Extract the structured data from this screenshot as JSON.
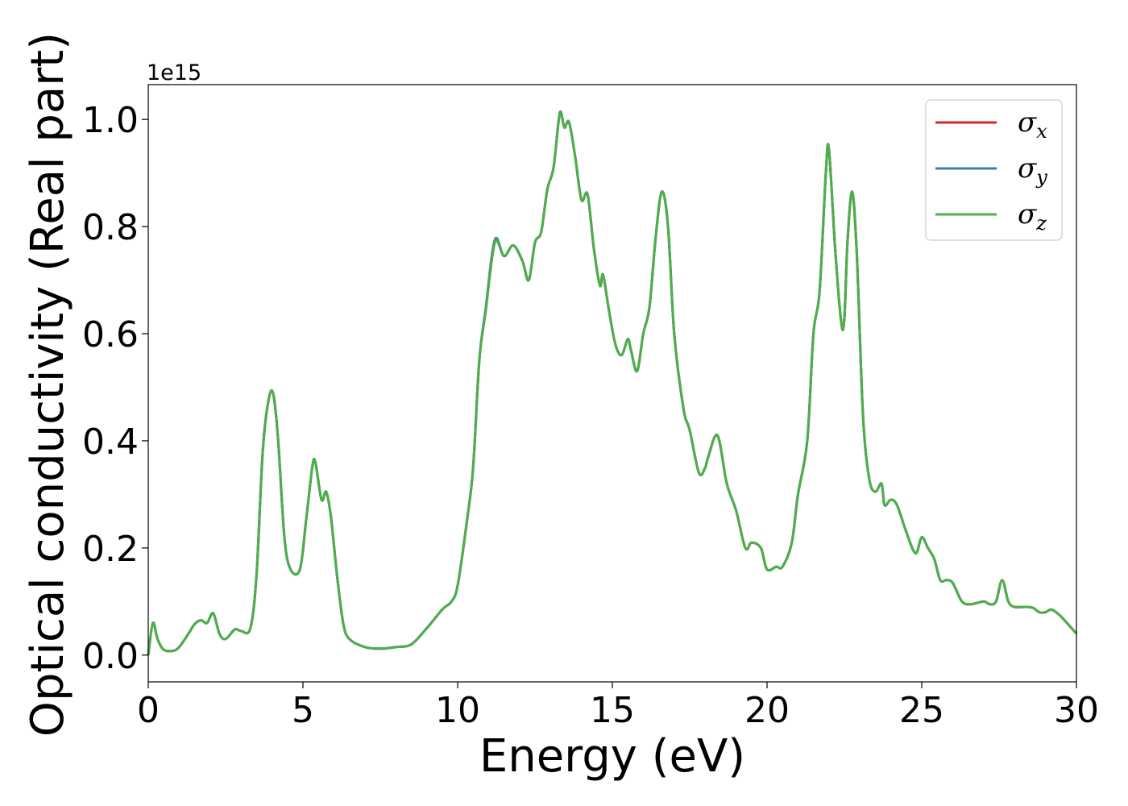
{
  "chart_data": {
    "type": "line",
    "xlabel": "Energy (eV)",
    "ylabel": "Optical conductivity (Real part)",
    "y_offset_label": "1e15",
    "xlim": [
      0,
      30
    ],
    "ylim": [
      -0.05,
      1.065
    ],
    "xticks": [
      0,
      5,
      10,
      15,
      20,
      25,
      30
    ],
    "xtick_labels": [
      "0",
      "5",
      "10",
      "15",
      "20",
      "25",
      "30"
    ],
    "yticks": [
      0.0,
      0.2,
      0.4,
      0.6,
      0.8,
      1.0
    ],
    "ytick_labels": [
      "0.0",
      "0.2",
      "0.4",
      "0.6",
      "0.8",
      "1.0"
    ],
    "grid": false,
    "legend_position": "top-right",
    "x": [
      0,
      0.15,
      0.3,
      0.5,
      0.8,
      1.0,
      1.3,
      1.5,
      1.7,
      1.9,
      2.1,
      2.3,
      2.5,
      2.8,
      3.0,
      3.3,
      3.5,
      3.7,
      3.9,
      4.05,
      4.2,
      4.4,
      4.6,
      4.9,
      5.1,
      5.3,
      5.4,
      5.6,
      5.75,
      5.9,
      6.1,
      6.3,
      6.5,
      7.0,
      7.5,
      8.0,
      8.5,
      9.0,
      9.5,
      9.8,
      10.0,
      10.3,
      10.5,
      10.7,
      10.9,
      11.2,
      11.5,
      11.8,
      12.1,
      12.3,
      12.5,
      12.7,
      12.9,
      13.1,
      13.3,
      13.45,
      13.6,
      13.8,
      14.0,
      14.2,
      14.4,
      14.6,
      14.7,
      14.9,
      15.1,
      15.3,
      15.5,
      15.6,
      15.8,
      16.0,
      16.2,
      16.4,
      16.6,
      16.8,
      17.0,
      17.3,
      17.5,
      17.8,
      18.0,
      18.1,
      18.4,
      18.7,
      19.0,
      19.3,
      19.5,
      19.8,
      20.0,
      20.3,
      20.5,
      20.8,
      21.0,
      21.3,
      21.5,
      21.7,
      21.9,
      22.0,
      22.2,
      22.4,
      22.5,
      22.6,
      22.75,
      22.9,
      23.1,
      23.3,
      23.5,
      23.7,
      23.8,
      24.0,
      24.2,
      24.5,
      24.8,
      25.0,
      25.2,
      25.4,
      25.6,
      25.8,
      26.0,
      26.3,
      26.6,
      27.0,
      27.2,
      27.4,
      27.6,
      27.8,
      28.0,
      28.4,
      28.6,
      28.8,
      29.0,
      29.2,
      29.5,
      30.0
    ],
    "series": [
      {
        "name": "σx",
        "color": "#d62728",
        "values": [
          0.0,
          0.06,
          0.03,
          0.01,
          0.008,
          0.015,
          0.04,
          0.058,
          0.065,
          0.06,
          0.078,
          0.04,
          0.03,
          0.048,
          0.045,
          0.05,
          0.15,
          0.38,
          0.48,
          0.485,
          0.4,
          0.22,
          0.16,
          0.16,
          0.25,
          0.35,
          0.36,
          0.29,
          0.305,
          0.26,
          0.15,
          0.06,
          0.03,
          0.015,
          0.012,
          0.015,
          0.02,
          0.05,
          0.085,
          0.1,
          0.13,
          0.25,
          0.35,
          0.55,
          0.64,
          0.77,
          0.745,
          0.765,
          0.735,
          0.7,
          0.77,
          0.79,
          0.87,
          0.91,
          1.01,
          0.985,
          0.995,
          0.93,
          0.85,
          0.86,
          0.76,
          0.69,
          0.71,
          0.64,
          0.58,
          0.56,
          0.59,
          0.57,
          0.53,
          0.6,
          0.65,
          0.78,
          0.865,
          0.8,
          0.6,
          0.46,
          0.42,
          0.34,
          0.35,
          0.37,
          0.41,
          0.32,
          0.27,
          0.2,
          0.21,
          0.2,
          0.16,
          0.165,
          0.165,
          0.21,
          0.3,
          0.4,
          0.6,
          0.68,
          0.9,
          0.945,
          0.76,
          0.62,
          0.63,
          0.77,
          0.865,
          0.75,
          0.45,
          0.33,
          0.305,
          0.32,
          0.28,
          0.29,
          0.28,
          0.23,
          0.19,
          0.22,
          0.2,
          0.18,
          0.14,
          0.14,
          0.135,
          0.1,
          0.095,
          0.1,
          0.095,
          0.1,
          0.14,
          0.1,
          0.09,
          0.09,
          0.088,
          0.08,
          0.08,
          0.085,
          0.072,
          0.04
        ]
      },
      {
        "name": "σy",
        "color": "#3a7db5",
        "values": [
          0.0,
          0.06,
          0.03,
          0.01,
          0.008,
          0.015,
          0.04,
          0.058,
          0.065,
          0.06,
          0.078,
          0.04,
          0.03,
          0.048,
          0.045,
          0.05,
          0.15,
          0.38,
          0.48,
          0.485,
          0.4,
          0.22,
          0.16,
          0.16,
          0.25,
          0.35,
          0.36,
          0.29,
          0.305,
          0.26,
          0.15,
          0.06,
          0.03,
          0.015,
          0.012,
          0.015,
          0.02,
          0.05,
          0.085,
          0.1,
          0.13,
          0.25,
          0.35,
          0.55,
          0.645,
          0.775,
          0.745,
          0.765,
          0.735,
          0.7,
          0.77,
          0.79,
          0.87,
          0.91,
          1.012,
          0.985,
          0.995,
          0.93,
          0.85,
          0.86,
          0.76,
          0.69,
          0.71,
          0.64,
          0.58,
          0.56,
          0.59,
          0.57,
          0.53,
          0.6,
          0.65,
          0.78,
          0.865,
          0.8,
          0.6,
          0.46,
          0.42,
          0.34,
          0.35,
          0.37,
          0.41,
          0.32,
          0.27,
          0.2,
          0.21,
          0.2,
          0.16,
          0.165,
          0.165,
          0.21,
          0.3,
          0.4,
          0.6,
          0.68,
          0.9,
          0.945,
          0.76,
          0.62,
          0.63,
          0.77,
          0.865,
          0.75,
          0.45,
          0.33,
          0.305,
          0.32,
          0.28,
          0.29,
          0.28,
          0.23,
          0.19,
          0.22,
          0.2,
          0.18,
          0.14,
          0.14,
          0.135,
          0.1,
          0.095,
          0.1,
          0.095,
          0.1,
          0.14,
          0.1,
          0.09,
          0.09,
          0.088,
          0.08,
          0.08,
          0.085,
          0.072,
          0.04
        ]
      },
      {
        "name": "σz",
        "color": "#4daf4a",
        "values": [
          0.0,
          0.06,
          0.03,
          0.01,
          0.008,
          0.015,
          0.04,
          0.058,
          0.065,
          0.06,
          0.078,
          0.04,
          0.03,
          0.048,
          0.045,
          0.05,
          0.15,
          0.38,
          0.48,
          0.485,
          0.4,
          0.22,
          0.16,
          0.16,
          0.25,
          0.35,
          0.36,
          0.29,
          0.305,
          0.26,
          0.15,
          0.06,
          0.03,
          0.015,
          0.012,
          0.015,
          0.02,
          0.05,
          0.085,
          0.1,
          0.13,
          0.25,
          0.35,
          0.55,
          0.64,
          0.77,
          0.745,
          0.765,
          0.735,
          0.7,
          0.77,
          0.79,
          0.87,
          0.91,
          1.01,
          0.985,
          0.995,
          0.93,
          0.85,
          0.86,
          0.76,
          0.69,
          0.71,
          0.64,
          0.58,
          0.56,
          0.59,
          0.57,
          0.53,
          0.6,
          0.65,
          0.78,
          0.865,
          0.8,
          0.6,
          0.46,
          0.42,
          0.34,
          0.35,
          0.37,
          0.41,
          0.32,
          0.27,
          0.2,
          0.21,
          0.2,
          0.16,
          0.165,
          0.165,
          0.21,
          0.3,
          0.4,
          0.6,
          0.68,
          0.9,
          0.945,
          0.76,
          0.62,
          0.63,
          0.77,
          0.865,
          0.75,
          0.45,
          0.33,
          0.305,
          0.32,
          0.28,
          0.29,
          0.28,
          0.23,
          0.19,
          0.22,
          0.2,
          0.18,
          0.14,
          0.14,
          0.135,
          0.1,
          0.095,
          0.1,
          0.095,
          0.1,
          0.14,
          0.1,
          0.09,
          0.09,
          0.088,
          0.08,
          0.08,
          0.085,
          0.072,
          0.04
        ]
      }
    ],
    "legend": [
      {
        "symbol": "σ",
        "subscript": "x",
        "color": "#d62728"
      },
      {
        "symbol": "σ",
        "subscript": "y",
        "color": "#3a7db5"
      },
      {
        "symbol": "σ",
        "subscript": "z",
        "color": "#4daf4a"
      }
    ]
  }
}
